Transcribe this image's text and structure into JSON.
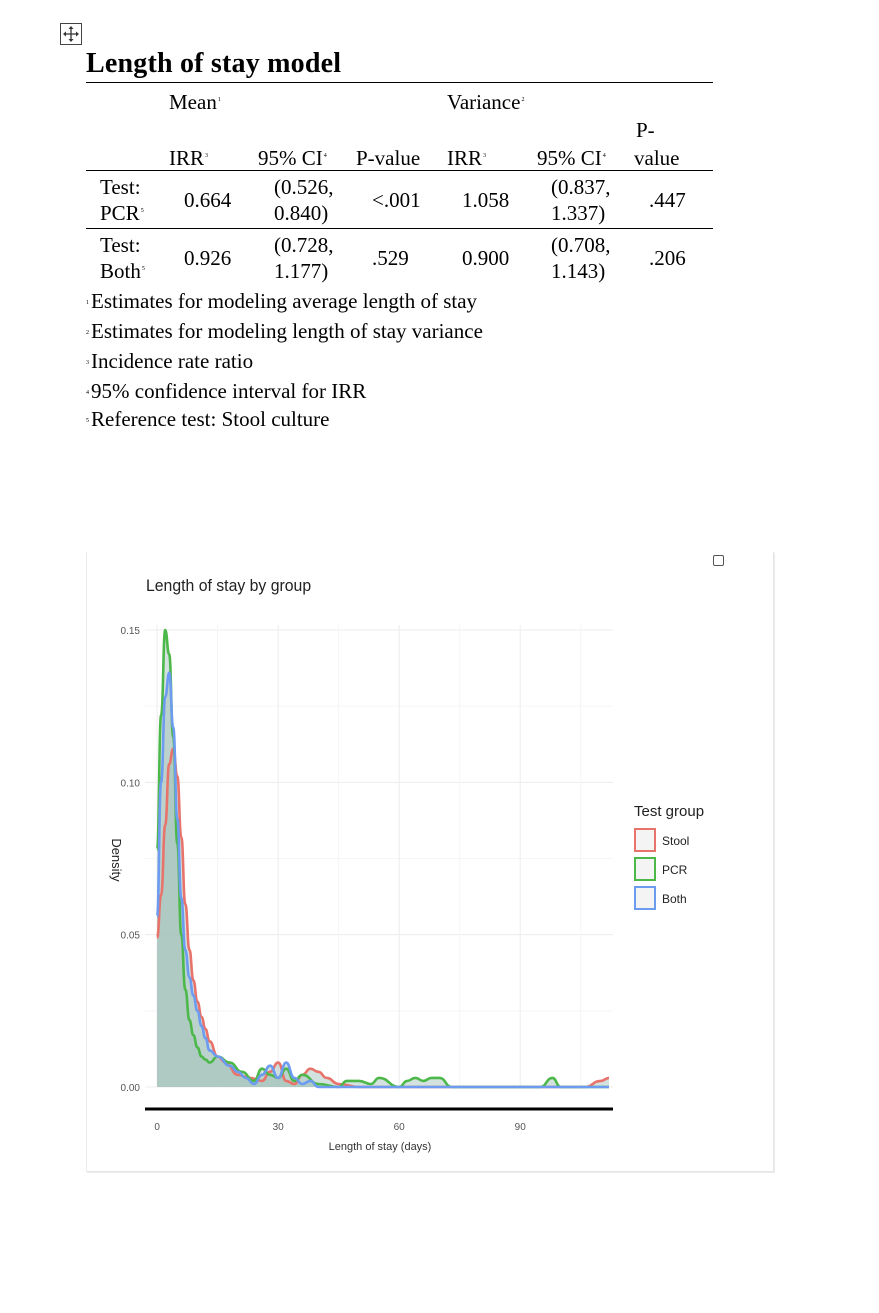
{
  "document": {
    "title": "Length of stay model"
  },
  "table": {
    "group_headers": [
      {
        "label": "Mean",
        "note": "1"
      },
      {
        "label": "Variance",
        "note": "2"
      }
    ],
    "column_headers": [
      {
        "label": "IRR",
        "note": "3"
      },
      {
        "label": "95% CI",
        "note": "4"
      },
      {
        "label": "P-value",
        "note": ""
      },
      {
        "label": "IRR",
        "note": "3"
      },
      {
        "label": "95% CI",
        "note": "4"
      },
      {
        "label_line1": "P-",
        "label_line2": "value"
      }
    ],
    "rows": [
      {
        "label_line1": "Test:",
        "label_line2": "PCR",
        "label_note": "5",
        "mean_irr": "0.664",
        "mean_ci_line1": "(0.526,",
        "mean_ci_line2": "0.840)",
        "mean_p": "<.001",
        "var_irr": "1.058",
        "var_ci_line1": "(0.837,",
        "var_ci_line2": "1.337)",
        "var_p": ".447"
      },
      {
        "label_line1": "Test:",
        "label_line2": "Both",
        "label_note": "5",
        "mean_irr": "0.926",
        "mean_ci_line1": "(0.728,",
        "mean_ci_line2": "1.177)",
        "mean_p": ".529",
        "var_irr": "0.900",
        "var_ci_line1": "(0.708,",
        "var_ci_line2": "1.143)",
        "var_p": ".206"
      }
    ]
  },
  "footnotes": [
    {
      "mark": "1",
      "text": "Estimates for modeling average length of stay"
    },
    {
      "mark": "2",
      "text": "Estimates for modeling length of stay variance"
    },
    {
      "mark": "3",
      "text": "Incidence rate ratio"
    },
    {
      "mark": "4",
      "text": "95% confidence interval for IRR"
    },
    {
      "mark": "5",
      "text": "Reference test: Stool culture"
    }
  ],
  "chart_data": {
    "type": "area",
    "title": "Length of stay by group",
    "xlabel": "Length of stay (days)",
    "ylabel": "Density",
    "xlim": [
      -3,
      113
    ],
    "ylim": [
      0,
      0.15
    ],
    "x_ticks": [
      0,
      30,
      60,
      90
    ],
    "y_ticks": [
      0.0,
      0.05,
      0.1,
      0.15
    ],
    "y_tick_labels": [
      "0.00",
      "0.05",
      "0.10",
      "0.15"
    ],
    "grid": true,
    "legend_title": "Test group",
    "legend_position": "right",
    "colors": {
      "Stool": "#E8736B",
      "PCR": "#4DB84A",
      "Both": "#6C9BF0",
      "fill": "#9FBFB9"
    },
    "series": [
      {
        "name": "Stool",
        "x": [
          0,
          1,
          2,
          3,
          4,
          5,
          6,
          7,
          8,
          9,
          10,
          11,
          12,
          13,
          15,
          17,
          20,
          23,
          26,
          28,
          30,
          32,
          34,
          36,
          38,
          40,
          42,
          45,
          50,
          60,
          80,
          100,
          106,
          110,
          112
        ],
        "y": [
          0.049,
          0.063,
          0.086,
          0.106,
          0.111,
          0.102,
          0.082,
          0.06,
          0.045,
          0.035,
          0.028,
          0.023,
          0.019,
          0.015,
          0.01,
          0.008,
          0.004,
          0.003,
          0.002,
          0.005,
          0.008,
          0.002,
          0.001,
          0.004,
          0.006,
          0.005,
          0.003,
          0.001,
          0.0,
          0.0,
          0.0,
          0.0,
          0.0,
          0.002,
          0.003
        ]
      },
      {
        "name": "PCR",
        "x": [
          0,
          1,
          2,
          3,
          4,
          5,
          6,
          7,
          8,
          9,
          10,
          11,
          12,
          13,
          15,
          18,
          21,
          24,
          26,
          28,
          30,
          32,
          34,
          36,
          40,
          45,
          47,
          50,
          53,
          55,
          60,
          62,
          64,
          66,
          68,
          70,
          73,
          80,
          90,
          95,
          98,
          100,
          110,
          112
        ],
        "y": [
          0.078,
          0.122,
          0.15,
          0.142,
          0.115,
          0.08,
          0.05,
          0.032,
          0.022,
          0.017,
          0.013,
          0.01,
          0.009,
          0.008,
          0.01,
          0.008,
          0.005,
          0.002,
          0.006,
          0.004,
          0.003,
          0.006,
          0.002,
          0.004,
          0.001,
          0.0,
          0.002,
          0.002,
          0.001,
          0.003,
          0.0,
          0.002,
          0.003,
          0.002,
          0.003,
          0.003,
          0.0,
          0.0,
          0.0,
          0.0,
          0.003,
          0.0,
          0.0,
          0.0
        ]
      },
      {
        "name": "Both",
        "x": [
          0,
          1,
          2,
          3,
          4,
          5,
          6,
          7,
          8,
          9,
          10,
          11,
          12,
          13,
          15,
          18,
          20,
          22,
          24,
          26,
          28,
          30,
          32,
          34,
          36,
          38,
          40,
          45,
          60,
          80,
          100,
          110,
          112
        ],
        "y": [
          0.056,
          0.1,
          0.128,
          0.136,
          0.118,
          0.088,
          0.062,
          0.045,
          0.036,
          0.03,
          0.025,
          0.02,
          0.016,
          0.012,
          0.01,
          0.007,
          0.005,
          0.003,
          0.001,
          0.004,
          0.007,
          0.003,
          0.008,
          0.003,
          0.001,
          0.002,
          0.0,
          0.0,
          0.0,
          0.0,
          0.0,
          0.0,
          0.0
        ]
      }
    ]
  }
}
